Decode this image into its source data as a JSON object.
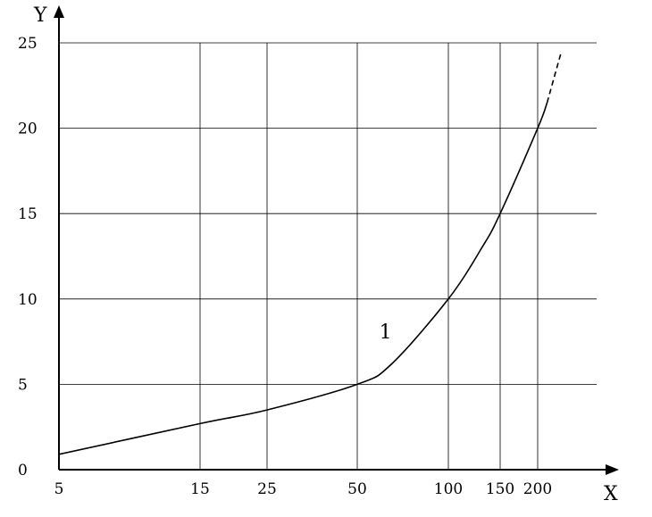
{
  "chart_data": {
    "type": "line",
    "xlabel": "X",
    "ylabel": "Y",
    "x_scale": "log",
    "x_ticks": [
      5,
      15,
      25,
      50,
      100,
      150,
      200
    ],
    "x_tick_labels": [
      "5",
      "15",
      "25",
      "50",
      "100",
      "150",
      "200"
    ],
    "y_ticks": [
      0,
      5,
      10,
      15,
      20,
      25
    ],
    "y_tick_labels": [
      "0",
      "5",
      "10",
      "15",
      "20",
      "25"
    ],
    "xlim": [
      5,
      260
    ],
    "ylim": [
      0,
      25
    ],
    "grid": true,
    "series": [
      {
        "name": "1",
        "x": [
          5,
          15,
          25,
          50,
          65,
          100,
          130,
          150,
          200,
          215
        ],
        "y": [
          0.9,
          2.7,
          3.5,
          5,
          6.2,
          10,
          13,
          15,
          20,
          21.5
        ],
        "style": "solid"
      },
      {
        "name": "",
        "x": [
          215,
          240
        ],
        "y": [
          21.5,
          24.5
        ],
        "style": "dashed"
      }
    ],
    "annotations": [
      {
        "text": "1",
        "x": 62,
        "y": 7.7
      }
    ]
  }
}
